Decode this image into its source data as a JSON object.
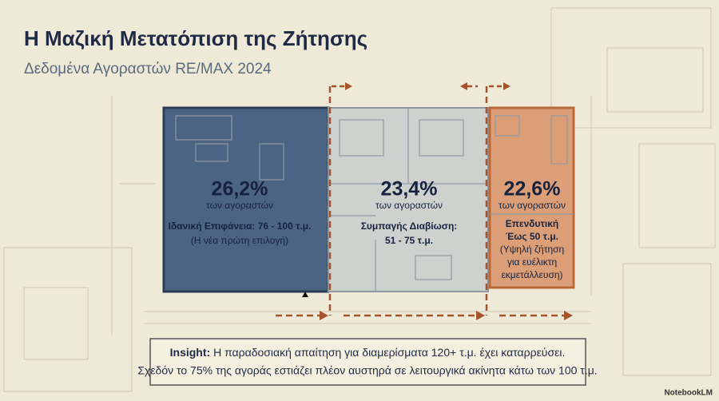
{
  "header": {
    "title": "Η Μαζική Μετατόπιση της Ζήτησης",
    "subtitle": "Δεδομένα Αγοραστών RE/MAX 2024"
  },
  "zones": [
    {
      "percent": "26,2%",
      "caption": "των αγοραστών",
      "lines": [
        "Ιδανική Επιφάνεια: 76 - 100 τ.μ.",
        "(Η νέα πρώτη επιλογή)"
      ]
    },
    {
      "percent": "23,4%",
      "caption": "των αγοραστών",
      "lines": [
        "Συμπαγής Διαβίωση:",
        "51 - 75 τ.μ."
      ]
    },
    {
      "percent": "22,6%",
      "caption": "των αγοραστών",
      "lines": [
        "Επενδυτική",
        "Έως 50 τ.μ.",
        "(Υψηλή ζήτηση",
        "για ευέλικτη",
        "εκμετάλλευση)"
      ]
    }
  ],
  "insight": {
    "label": "Insight:",
    "lines": [
      "Η παραδοσιακή απαίτηση για διαμερίσματα 120+ τ.μ. έχει καταρρεύσει.",
      "Σχεδόν το 75% της αγοράς εστιάζει πλέον αυστηρά σε λειτουργικά ακίνητα κάτω των 100 τ.μ."
    ]
  },
  "watermark": "NotebookLM"
}
